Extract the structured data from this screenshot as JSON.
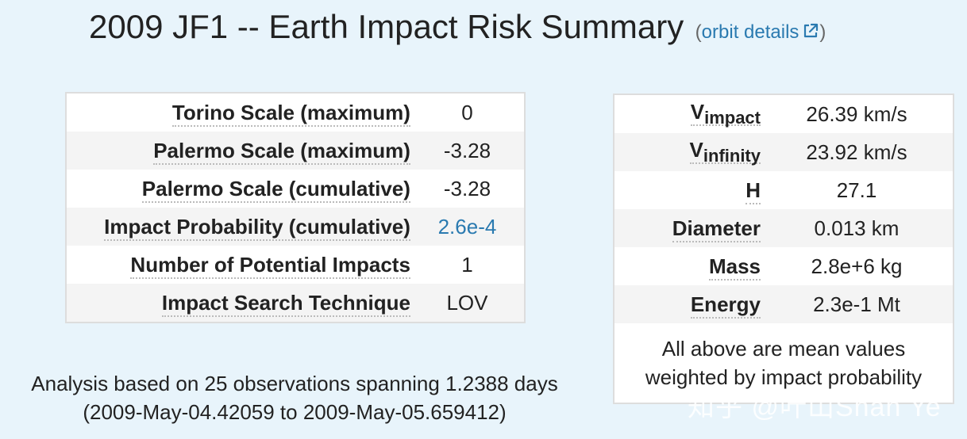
{
  "header": {
    "title": "2009 JF1 -- Earth Impact Risk Summary",
    "orbit_link": "orbit details",
    "paren_open": "(",
    "paren_close": ")"
  },
  "risk_table": [
    {
      "label": "Torino Scale (maximum)",
      "value": "0"
    },
    {
      "label": "Palermo Scale (maximum)",
      "value": "-3.28"
    },
    {
      "label": "Palermo Scale (cumulative)",
      "value": "-3.28"
    },
    {
      "label": "Impact Probability (cumulative)",
      "value": "2.6e-4"
    },
    {
      "label": "Number of Potential Impacts",
      "value": "1"
    },
    {
      "label": "Impact Search Technique",
      "value": "LOV"
    }
  ],
  "phys_table": {
    "v_impact": {
      "main": "V",
      "sub": "impact",
      "value": "26.39 km/s"
    },
    "v_infinity": {
      "main": "V",
      "sub": "infinity",
      "value": "23.92 km/s"
    },
    "h": {
      "label": "H",
      "value": "27.1"
    },
    "diameter": {
      "label": "Diameter",
      "value": "0.013 km"
    },
    "mass": {
      "label": "Mass",
      "value": "2.8e+6 kg"
    },
    "energy": {
      "label": "Energy",
      "value": "2.3e-1 Mt"
    },
    "note_line1": "All above are mean values",
    "note_line2": "weighted by impact probability"
  },
  "analysis": {
    "line1": "Analysis based on 25 observations spanning 1.2388 days",
    "line2": "(2009-May-04.42059 to 2009-May-05.659412)"
  },
  "watermark": "知乎 @叶山Shan Ye",
  "colors": {
    "background": "#e8f4fb",
    "link": "#2a7ab0",
    "row_alt": "#f4f4f4",
    "border": "#dddddd"
  }
}
